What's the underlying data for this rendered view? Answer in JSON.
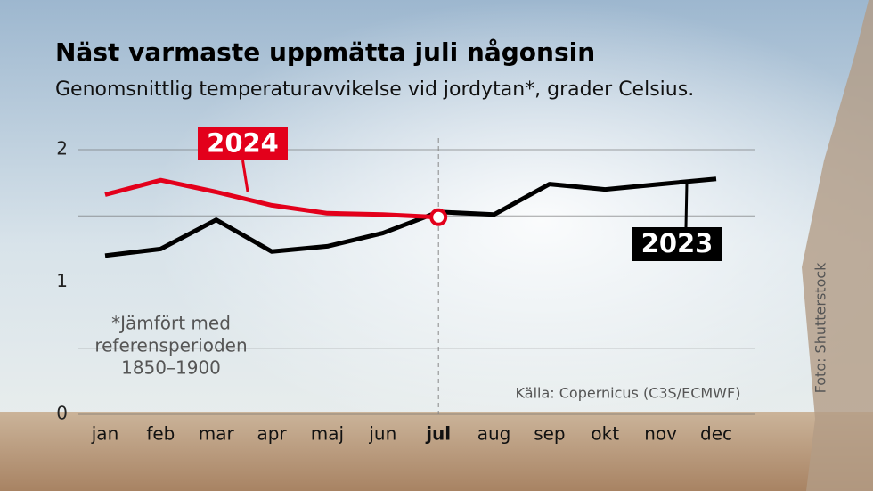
{
  "chart_data": {
    "type": "line",
    "title": "Näst varmaste uppmätta juli någonsin",
    "subtitle": "Genomsnittlig temperaturavvikelse vid jordytan*, grader Celsius.",
    "categories": [
      "jan",
      "feb",
      "mar",
      "apr",
      "maj",
      "jun",
      "jul",
      "aug",
      "sep",
      "okt",
      "nov",
      "dec"
    ],
    "highlight_index": 6,
    "series": [
      {
        "name": "2024",
        "color": "#e3001b",
        "values": [
          1.66,
          1.77,
          1.68,
          1.58,
          1.52,
          1.51,
          1.49,
          null,
          null,
          null,
          null,
          null
        ]
      },
      {
        "name": "2023",
        "color": "#000000",
        "values": [
          1.2,
          1.25,
          1.47,
          1.23,
          1.27,
          1.37,
          1.53,
          1.51,
          1.74,
          1.7,
          1.74,
          1.78
        ]
      }
    ],
    "ylim": [
      0,
      2
    ],
    "yticks": [
      0,
      1,
      2
    ],
    "minor_gridlines": [
      0.5,
      1.5
    ],
    "grid": true,
    "note": [
      "*Jämfört med",
      "referensperioden",
      "1850–1900"
    ],
    "source": "Källa: Copernicus (C3S/ECMWF)",
    "credit": "Foto: Shutterstock"
  }
}
